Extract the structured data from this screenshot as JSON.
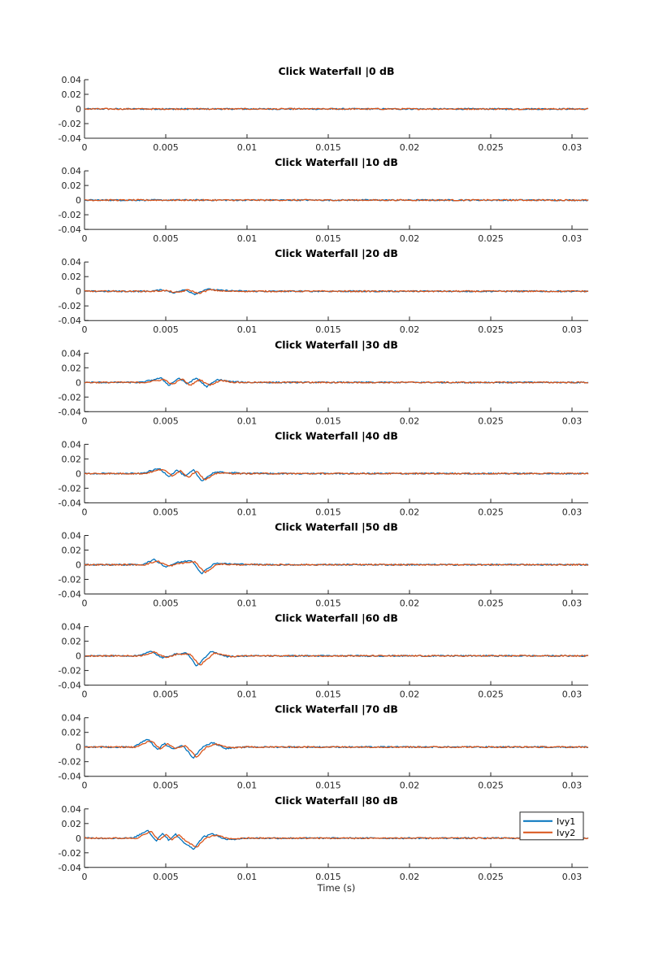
{
  "figure": {
    "xlabel": "Time (s)"
  },
  "colors": {
    "series1": "#0072BD",
    "series2": "#D95319",
    "axis": "#262626"
  },
  "legend": {
    "placement": "top-right of last subplot",
    "entries": [
      "Ivy1",
      "Ivy2"
    ]
  },
  "chart_data": [
    {
      "type": "line",
      "title": "Click Waterfall |0 dB",
      "xlim": [
        0,
        0.031
      ],
      "ylim": [
        -0.04,
        0.04
      ],
      "xticks": [
        "0",
        "0.005",
        "0.01",
        "0.015",
        "0.02",
        "0.025",
        "0.03"
      ],
      "yticks": [
        "0.04",
        "0.02",
        "0",
        "-0.02",
        "-0.04"
      ],
      "xlabel": "",
      "series": [
        {
          "name": "Ivy1",
          "x": [
            0,
            0.004,
            0.006,
            0.008,
            0.01,
            0.015,
            0.02,
            0.025,
            0.031
          ],
          "y": [
            0,
            0,
            0,
            0,
            0,
            0,
            0,
            0,
            0
          ]
        },
        {
          "name": "Ivy2",
          "x": [
            0,
            0.004,
            0.006,
            0.008,
            0.01,
            0.015,
            0.02,
            0.025,
            0.031
          ],
          "y": [
            0,
            0,
            0,
            0,
            0,
            0,
            0,
            0,
            0
          ]
        }
      ]
    },
    {
      "type": "line",
      "title": "Click Waterfall |10 dB",
      "xlim": [
        0,
        0.031
      ],
      "ylim": [
        -0.04,
        0.04
      ],
      "xticks": [
        "0",
        "0.005",
        "0.01",
        "0.015",
        "0.02",
        "0.025",
        "0.03"
      ],
      "yticks": [
        "0.04",
        "0.02",
        "0",
        "-0.02",
        "-0.04"
      ],
      "xlabel": "",
      "series": [
        {
          "name": "Ivy1",
          "x": [
            0,
            0.004,
            0.006,
            0.008,
            0.01,
            0.015,
            0.02,
            0.025,
            0.031
          ],
          "y": [
            0,
            0,
            0,
            0,
            0,
            0,
            0,
            0,
            0
          ]
        },
        {
          "name": "Ivy2",
          "x": [
            0,
            0.004,
            0.006,
            0.008,
            0.01,
            0.015,
            0.02,
            0.025,
            0.031
          ],
          "y": [
            0,
            0,
            0,
            0,
            0,
            0,
            0,
            0,
            0
          ]
        }
      ]
    },
    {
      "type": "line",
      "title": "Click Waterfall |20 dB",
      "xlim": [
        0,
        0.031
      ],
      "ylim": [
        -0.04,
        0.04
      ],
      "xticks": [
        "0",
        "0.005",
        "0.01",
        "0.015",
        "0.02",
        "0.025",
        "0.03"
      ],
      "yticks": [
        "0.04",
        "0.02",
        "0",
        "-0.02",
        "-0.04"
      ],
      "xlabel": "",
      "series": [
        {
          "name": "Ivy1",
          "x": [
            0,
            0.004,
            0.0048,
            0.0055,
            0.0062,
            0.0068,
            0.0075,
            0.0085,
            0.01,
            0.031
          ],
          "y": [
            0,
            0,
            0.002,
            -0.002,
            0.002,
            -0.004,
            0.003,
            0.001,
            0,
            0
          ]
        },
        {
          "name": "Ivy2",
          "x": [
            0,
            0.0042,
            0.005,
            0.0057,
            0.0064,
            0.007,
            0.0077,
            0.0087,
            0.01,
            0.031
          ],
          "y": [
            0,
            0,
            0.001,
            -0.002,
            0.002,
            -0.003,
            0.002,
            0,
            0,
            0
          ]
        }
      ]
    },
    {
      "type": "line",
      "title": "Click Waterfall |30 dB",
      "xlim": [
        0,
        0.031
      ],
      "ylim": [
        -0.04,
        0.04
      ],
      "xticks": [
        "0",
        "0.005",
        "0.01",
        "0.015",
        "0.02",
        "0.025",
        "0.03"
      ],
      "yticks": [
        "0.04",
        "0.02",
        "0",
        "-0.02",
        "-0.04"
      ],
      "xlabel": "",
      "series": [
        {
          "name": "Ivy1",
          "x": [
            0,
            0.0035,
            0.0047,
            0.0052,
            0.0058,
            0.0063,
            0.0069,
            0.0075,
            0.0082,
            0.009,
            0.01,
            0.031
          ],
          "y": [
            0,
            0,
            0.006,
            -0.004,
            0.006,
            -0.002,
            0.006,
            -0.006,
            0.004,
            0.001,
            0,
            0
          ]
        },
        {
          "name": "Ivy2",
          "x": [
            0,
            0.0037,
            0.0049,
            0.0054,
            0.006,
            0.0065,
            0.0071,
            0.0077,
            0.0084,
            0.0092,
            0.01,
            0.031
          ],
          "y": [
            0,
            0,
            0.004,
            -0.003,
            0.005,
            -0.004,
            0.004,
            -0.004,
            0.003,
            0,
            0,
            0
          ]
        }
      ]
    },
    {
      "type": "line",
      "title": "Click Waterfall |40 dB",
      "xlim": [
        0,
        0.031
      ],
      "ylim": [
        -0.04,
        0.04
      ],
      "xticks": [
        "0",
        "0.005",
        "0.01",
        "0.015",
        "0.02",
        "0.025",
        "0.03"
      ],
      "yticks": [
        "0.04",
        "0.02",
        "0",
        "-0.02",
        "-0.04"
      ],
      "xlabel": "",
      "series": [
        {
          "name": "Ivy1",
          "x": [
            0,
            0.0035,
            0.0046,
            0.0052,
            0.0057,
            0.0062,
            0.0067,
            0.0072,
            0.008,
            0.009,
            0.011,
            0.031
          ],
          "y": [
            0,
            0,
            0.007,
            -0.004,
            0.005,
            -0.004,
            0.005,
            -0.01,
            0.002,
            0.001,
            0,
            0
          ]
        },
        {
          "name": "Ivy2",
          "x": [
            0,
            0.0037,
            0.0048,
            0.0054,
            0.0059,
            0.0064,
            0.0069,
            0.0074,
            0.0082,
            0.0092,
            0.011,
            0.031
          ],
          "y": [
            0,
            0,
            0.006,
            -0.003,
            0.004,
            -0.005,
            0.004,
            -0.009,
            0.001,
            0,
            0,
            0
          ]
        }
      ]
    },
    {
      "type": "line",
      "title": "Click Waterfall |50 dB",
      "xlim": [
        0,
        0.031
      ],
      "ylim": [
        -0.04,
        0.04
      ],
      "xticks": [
        "0",
        "0.005",
        "0.01",
        "0.015",
        "0.02",
        "0.025",
        "0.03"
      ],
      "yticks": [
        "0.04",
        "0.02",
        "0",
        "-0.02",
        "-0.04"
      ],
      "xlabel": "",
      "series": [
        {
          "name": "Ivy1",
          "x": [
            0,
            0.0035,
            0.0043,
            0.005,
            0.0057,
            0.0066,
            0.0072,
            0.008,
            0.009,
            0.011,
            0.031
          ],
          "y": [
            0,
            0,
            0.007,
            -0.003,
            0.003,
            0.006,
            -0.012,
            0.002,
            0.001,
            0,
            0
          ]
        },
        {
          "name": "Ivy2",
          "x": [
            0,
            0.0037,
            0.0045,
            0.0052,
            0.0059,
            0.0068,
            0.0074,
            0.0082,
            0.0092,
            0.011,
            0.031
          ],
          "y": [
            0,
            0,
            0.005,
            -0.002,
            0.002,
            0.004,
            -0.011,
            0.001,
            0,
            0,
            0
          ]
        }
      ]
    },
    {
      "type": "line",
      "title": "Click Waterfall |60 dB",
      "xlim": [
        0,
        0.031
      ],
      "ylim": [
        -0.04,
        0.04
      ],
      "xticks": [
        "0",
        "0.005",
        "0.01",
        "0.015",
        "0.02",
        "0.025",
        "0.03"
      ],
      "yticks": [
        "0.04",
        "0.02",
        "0",
        "-0.02",
        "-0.04"
      ],
      "xlabel": "",
      "series": [
        {
          "name": "Ivy1",
          "x": [
            0,
            0.0032,
            0.0041,
            0.0048,
            0.0055,
            0.0063,
            0.0069,
            0.0078,
            0.0088,
            0.01,
            0.031
          ],
          "y": [
            0,
            0,
            0.006,
            -0.003,
            0.002,
            0.004,
            -0.014,
            0.006,
            -0.001,
            0,
            0
          ]
        },
        {
          "name": "Ivy2",
          "x": [
            0,
            0.0034,
            0.0043,
            0.005,
            0.0057,
            0.0065,
            0.0071,
            0.008,
            0.009,
            0.01,
            0.031
          ],
          "y": [
            0,
            0,
            0.005,
            -0.002,
            0.002,
            0.003,
            -0.013,
            0.004,
            -0.001,
            0,
            0
          ]
        }
      ]
    },
    {
      "type": "line",
      "title": "Click Waterfall |70 dB",
      "xlim": [
        0,
        0.031
      ],
      "ylim": [
        -0.04,
        0.04
      ],
      "xticks": [
        "0",
        "0.005",
        "0.01",
        "0.015",
        "0.02",
        "0.025",
        "0.03"
      ],
      "yticks": [
        "0.04",
        "0.02",
        "0",
        "-0.02",
        "-0.04"
      ],
      "xlabel": "",
      "series": [
        {
          "name": "Ivy1",
          "x": [
            0,
            0.003,
            0.0039,
            0.0045,
            0.0049,
            0.0054,
            0.006,
            0.0067,
            0.0073,
            0.0079,
            0.0087,
            0.01,
            0.031
          ],
          "y": [
            0,
            0,
            0.011,
            -0.004,
            0.005,
            -0.003,
            0.003,
            -0.015,
            0.001,
            0.006,
            -0.002,
            0,
            0
          ]
        },
        {
          "name": "Ivy2",
          "x": [
            0,
            0.0032,
            0.0041,
            0.0047,
            0.0051,
            0.0056,
            0.0062,
            0.0069,
            0.0075,
            0.0081,
            0.0089,
            0.01,
            0.031
          ],
          "y": [
            0,
            0,
            0.009,
            -0.003,
            0.004,
            -0.002,
            0.002,
            -0.014,
            0,
            0.004,
            -0.001,
            0,
            0
          ]
        }
      ]
    },
    {
      "type": "line",
      "title": "Click Waterfall |80 dB",
      "xlim": [
        0,
        0.031
      ],
      "ylim": [
        -0.04,
        0.04
      ],
      "xticks": [
        "0",
        "0.005",
        "0.01",
        "0.015",
        "0.02",
        "0.025",
        "0.03"
      ],
      "yticks": [
        "0.04",
        "0.02",
        "0",
        "-0.02",
        "-0.04"
      ],
      "xlabel": "Time (s)",
      "series": [
        {
          "name": "Ivy1",
          "x": [
            0,
            0.003,
            0.0039,
            0.0044,
            0.0048,
            0.0052,
            0.0056,
            0.006,
            0.0067,
            0.0073,
            0.0079,
            0.0087,
            0.01,
            0.031
          ],
          "y": [
            0,
            0,
            0.011,
            -0.004,
            0.007,
            -0.003,
            0.006,
            -0.004,
            -0.015,
            0.002,
            0.006,
            -0.002,
            0,
            0
          ]
        },
        {
          "name": "Ivy2",
          "x": [
            0,
            0.0032,
            0.0041,
            0.0046,
            0.005,
            0.0054,
            0.0058,
            0.0062,
            0.0069,
            0.0075,
            0.0081,
            0.0089,
            0.01,
            0.031
          ],
          "y": [
            0,
            0,
            0.009,
            -0.003,
            0.005,
            -0.002,
            0.005,
            -0.003,
            -0.013,
            0.001,
            0.004,
            -0.001,
            0,
            0
          ]
        }
      ]
    }
  ]
}
